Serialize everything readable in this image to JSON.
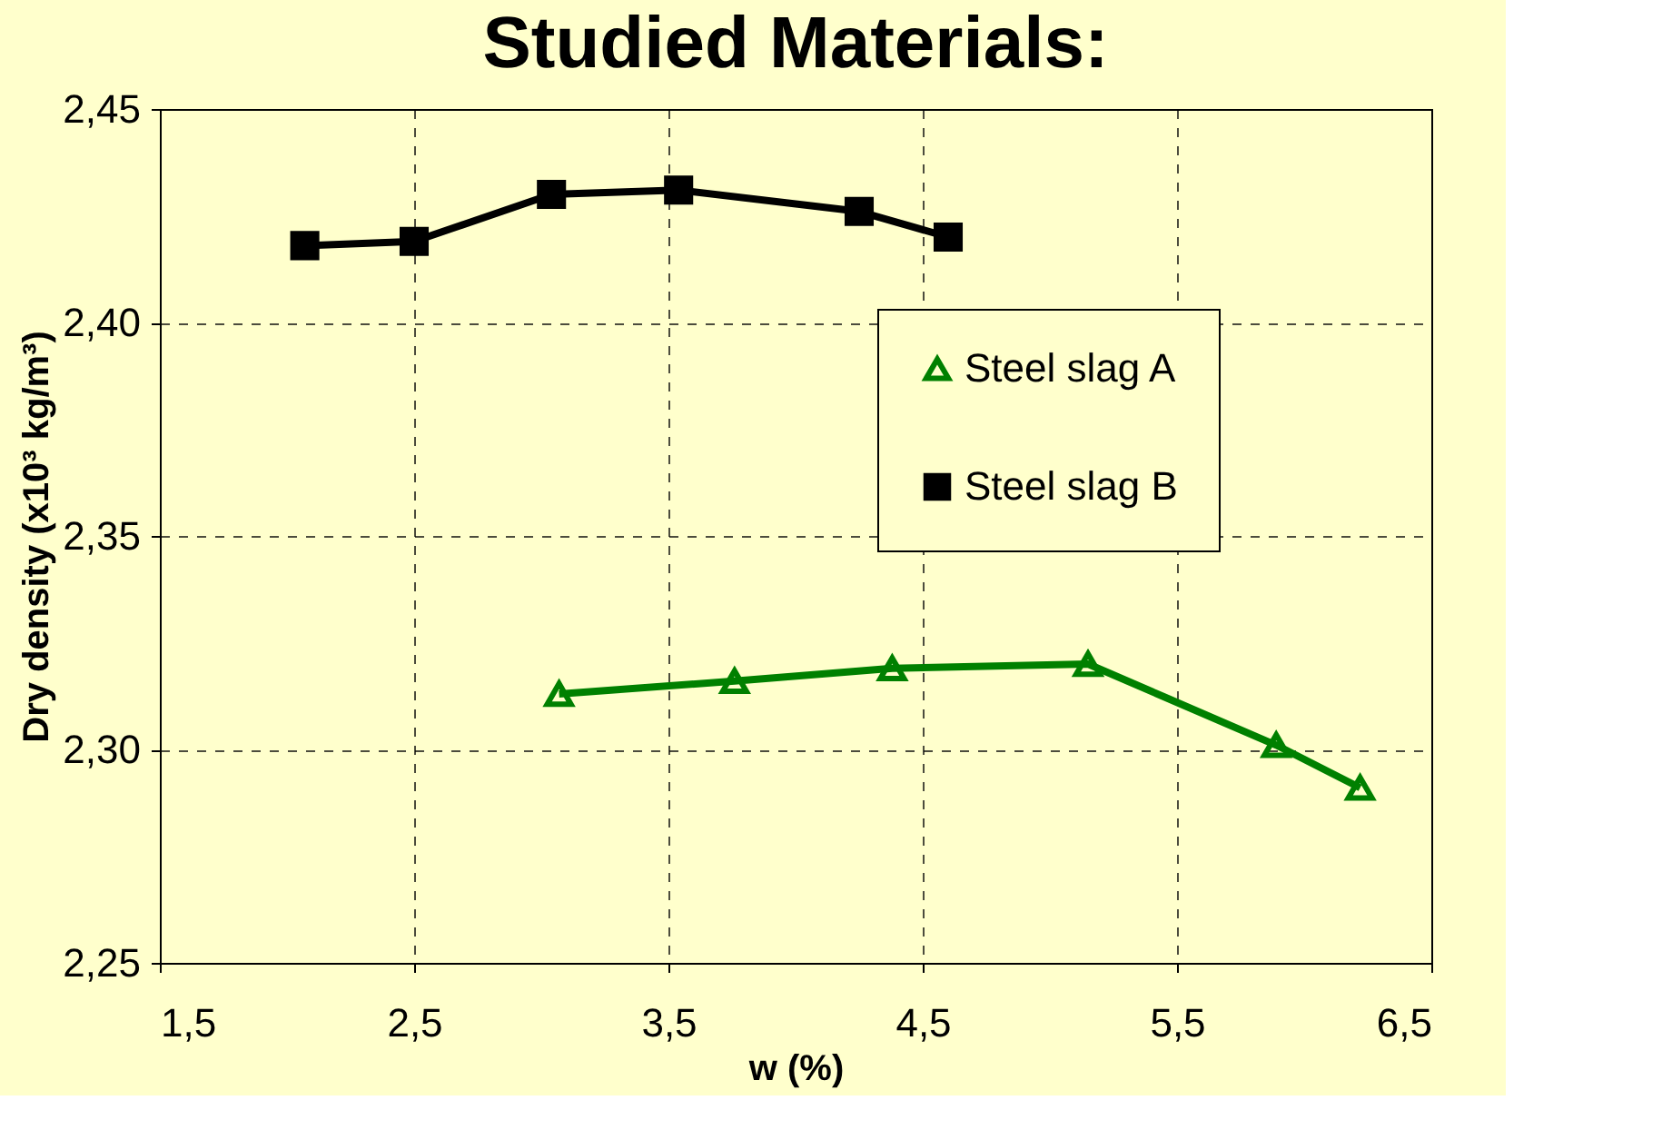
{
  "chart_data": {
    "type": "line",
    "title": "Studied Materials:",
    "xlabel": "w (%)",
    "ylabel": "Dry density (x10³ kg/m³)",
    "series": [
      {
        "name": "Steel slag A",
        "color": "#008000",
        "marker": "triangle",
        "x": [
          3.07,
          3.76,
          4.38,
          5.15,
          5.89,
          6.22
        ],
        "values": [
          2.313,
          2.316,
          2.319,
          2.32,
          2.301,
          2.291
        ]
      },
      {
        "name": "Steel slag B",
        "color": "#000000",
        "marker": "square",
        "x": [
          2.07,
          2.5,
          3.04,
          3.54,
          4.25,
          4.6
        ],
        "values": [
          2.418,
          2.419,
          2.43,
          2.431,
          2.426,
          2.42
        ]
      }
    ],
    "xlim": [
      1.5,
      6.5
    ],
    "xticks": [
      {
        "value": 1.5,
        "label": "1,5"
      },
      {
        "value": 2.5,
        "label": "2,5"
      },
      {
        "value": 3.5,
        "label": "3,5"
      },
      {
        "value": 4.5,
        "label": "4,5"
      },
      {
        "value": 5.5,
        "label": "5,5"
      },
      {
        "value": 6.5,
        "label": "6,5"
      }
    ],
    "ylim": [
      2.25,
      2.45
    ],
    "yticks": [
      {
        "value": 2.25,
        "label": "2,25"
      },
      {
        "value": 2.3,
        "label": "2,30"
      },
      {
        "value": 2.35,
        "label": "2,35"
      },
      {
        "value": 2.4,
        "label": "2,40"
      },
      {
        "value": 2.45,
        "label": "2,45"
      }
    ],
    "grid": true,
    "legend": "right",
    "line_style": "solid"
  }
}
